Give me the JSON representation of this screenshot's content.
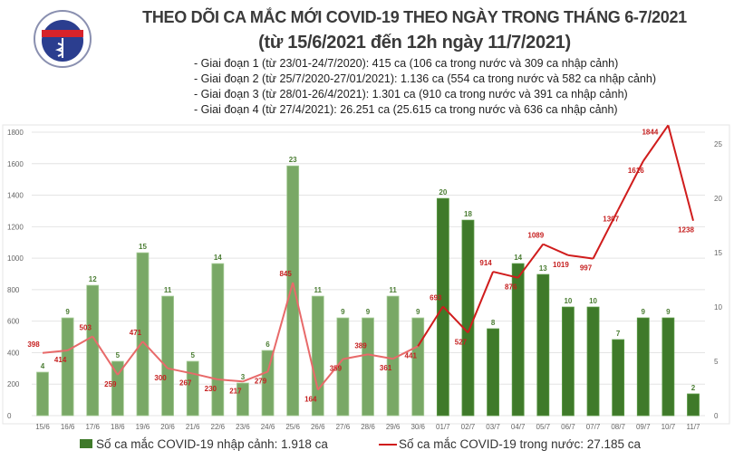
{
  "header": {
    "logo_text": "BỘ Y TẾ - MINISTRY OF HEALTH",
    "title": "THEO DÕI CA MẮC MỚI COVID-19 THEO NGÀY TRONG THÁNG 6-7/2021",
    "subtitle": "(từ 15/6/2021 đến 12h ngày 11/7/2021)",
    "notes": [
      "- Giai đoạn 1 (từ 23/01-24/7/2020): 415 ca (106 ca trong nước và 309 ca nhập cảnh)",
      "- Giai đoạn 2 (từ 25/7/2020-27/01/2021): 1.136 ca (554 ca trong nước và 582 ca nhập cảnh)",
      "- Giai đoạn 3 (từ 28/01-26/4/2021): 1.301 ca (910 ca trong nước và 391 ca nhập cảnh)",
      "- Giai đoạn 4 (từ 27/4/2021): 26.251 ca (25.615 ca trong nước và 636 ca nhập cảnh)"
    ]
  },
  "chart_data": {
    "type": "bar+line",
    "categories": [
      "15/6",
      "16/6",
      "17/6",
      "18/6",
      "19/6",
      "20/6",
      "21/6",
      "22/6",
      "23/6",
      "24/6",
      "25/6",
      "26/6",
      "27/6",
      "28/6",
      "29/6",
      "30/6",
      "01/7",
      "02/7",
      "03/7",
      "04/7",
      "05/7",
      "06/7",
      "07/7",
      "08/7",
      "09/7",
      "10/7",
      "11/7"
    ],
    "series": [
      {
        "name": "Số ca mắc COVID-19 nhập cảnh: 1.918 ca",
        "type": "bar",
        "axis": "right",
        "values": [
          4,
          9,
          12,
          5,
          15,
          11,
          5,
          14,
          3,
          6,
          23,
          11,
          9,
          9,
          11,
          9,
          20,
          18,
          8,
          14,
          13,
          10,
          10,
          7,
          9,
          9,
          2
        ]
      },
      {
        "name": "Số ca mắc COVID-19 trong nước: 27.185 ca",
        "type": "line",
        "axis": "left",
        "values": [
          398,
          414,
          503,
          259,
          471,
          300,
          267,
          230,
          217,
          279,
          845,
          164,
          359,
          389,
          361,
          441,
          693,
          527,
          914,
          876,
          1089,
          1019,
          997,
          1307,
          1616,
          1844,
          1238
        ]
      }
    ],
    "left_axis": {
      "ylim": [
        0,
        1800
      ],
      "ticks": [
        0,
        200,
        400,
        600,
        800,
        1000,
        1200,
        1400,
        1600,
        1800
      ]
    },
    "right_axis": {
      "ylim": [
        0,
        26
      ],
      "ticks": [
        0,
        5,
        10,
        15,
        20,
        25
      ]
    },
    "grid": true,
    "legend_placement": "bottom",
    "colors": {
      "bar_june": "#79a866",
      "bar_july": "#3f7a2a",
      "line_june": "#e86a6a",
      "line_july": "#d01c1c"
    }
  }
}
